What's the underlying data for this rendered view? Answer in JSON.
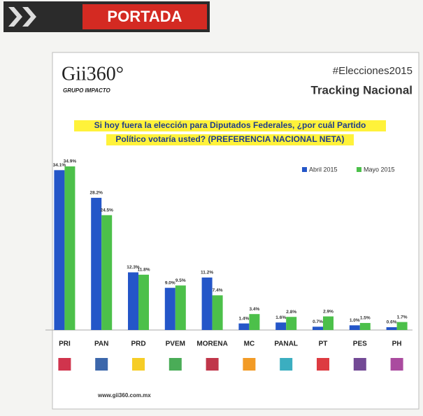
{
  "header": {
    "section": "PORTADA"
  },
  "brand": {
    "logo": "Gii360°",
    "tagline": "GRUPO IMPACTO",
    "hashtag": "#Elecciones2015",
    "subtitle": "Tracking Nacional",
    "website": "www.gii360.com.mx"
  },
  "chart_data": {
    "type": "bar",
    "title": [
      "Si hoy fuera la elección para Diputados Federales, ¿por cuál Partido",
      "Político votaría usted? (PREFERENCIA NACIONAL NETA)"
    ],
    "categories": [
      "PRI",
      "PAN",
      "PRD",
      "PVEM",
      "MORENA",
      "MC",
      "PANAL",
      "PT",
      "PES",
      "PH"
    ],
    "series": [
      {
        "name": "Abril 2015",
        "color": "#2456c8",
        "values": [
          34.1,
          28.2,
          12.3,
          9.0,
          11.2,
          1.4,
          1.6,
          0.7,
          1.0,
          0.6
        ],
        "value_labels": [
          "34.1%",
          "28.2%",
          "12.3%",
          "9.0%",
          "11.2%",
          "1.4%",
          "1.6%",
          "0.7%",
          "1.0%",
          "0.6%"
        ]
      },
      {
        "name": "Mayo 2015",
        "color": "#4cc04a",
        "values": [
          34.9,
          24.5,
          11.8,
          9.5,
          7.4,
          3.4,
          2.8,
          2.9,
          1.5,
          1.7
        ],
        "value_labels": [
          "34.9%",
          "24.5%",
          "11.8%",
          "9.5%",
          "7.4%",
          "3.4%",
          "2.8%",
          "2.9%",
          "1.5%",
          "1.7%"
        ]
      }
    ],
    "legend": "top-right"
  }
}
